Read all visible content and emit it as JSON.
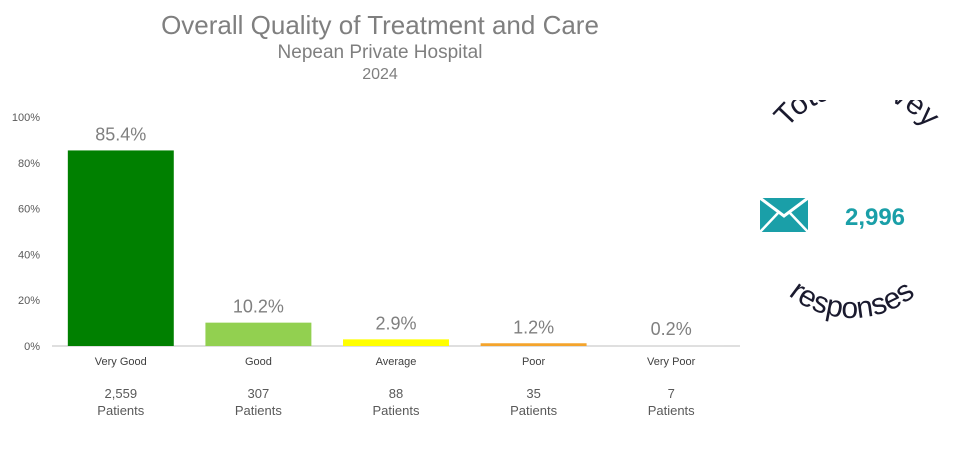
{
  "header": {
    "title": "Overall Quality of Treatment and Care",
    "subtitle": "Nepean Private Hospital",
    "year": "2024"
  },
  "chart_data": {
    "type": "bar",
    "categories": [
      "Very Good",
      "Good",
      "Average",
      "Poor",
      "Very Poor"
    ],
    "values": [
      85.4,
      10.2,
      2.9,
      1.2,
      0.2
    ],
    "data_labels": [
      "85.4%",
      "10.2%",
      "2.9%",
      "1.2%",
      "0.2%"
    ],
    "colors": [
      "#008000",
      "#92d050",
      "#ffff00",
      "#f4a42c",
      "#e0e0e0"
    ],
    "ylim": [
      0,
      100
    ],
    "yticks": [
      "0%",
      "20%",
      "40%",
      "60%",
      "80%",
      "100%"
    ],
    "grid": false,
    "title": "Overall Quality of Treatment and Care",
    "xlabel": "",
    "ylabel": ""
  },
  "patients": [
    {
      "count": "2,559",
      "label": "Patients"
    },
    {
      "count": "307",
      "label": "Patients"
    },
    {
      "count": "88",
      "label": "Patients"
    },
    {
      "count": "35",
      "label": "Patients"
    },
    {
      "count": "7",
      "label": "Patients"
    }
  ],
  "survey": {
    "top_text": "Total survey",
    "bottom_text": "responses",
    "count": "2,996",
    "icon": "envelope-icon",
    "accent_color": "#1a9fa8"
  }
}
